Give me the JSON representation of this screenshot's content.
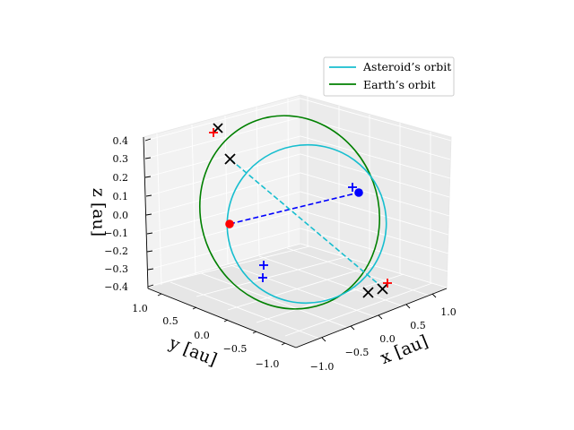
{
  "chart_data": {
    "type": "line",
    "projection": "3d",
    "axes": {
      "x": {
        "label": "x [au]",
        "ticks": [
          "−1.0",
          "−0.5",
          "0.0",
          "0.5",
          "1.0"
        ]
      },
      "y": {
        "label": "y [au]",
        "ticks": [
          "−1.0",
          "−0.5",
          "0.0",
          "0.5",
          "1.0"
        ]
      },
      "z": {
        "label": "z [au]",
        "ticks": [
          "−0.4",
          "−0.3",
          "−0.2",
          "−0.1",
          "0.0",
          "0.1",
          "0.2",
          "0.3",
          "0.4"
        ]
      }
    },
    "grid": true,
    "legend_position": "top-right",
    "series": [
      {
        "name": "Asteroid’s orbit",
        "color": "#17becf",
        "style": "solid"
      },
      {
        "name": "Earth’s orbit",
        "color": "#008000",
        "style": "solid"
      }
    ],
    "extra_lines": [
      {
        "color": "#0000ff",
        "style": "dashed"
      },
      {
        "color": "#17becf",
        "style": "dashed"
      }
    ],
    "points": [
      {
        "marker": "dot",
        "color": "#ff0000"
      },
      {
        "marker": "dot",
        "color": "#0000ff"
      },
      {
        "marker": "x",
        "color": "#000000"
      },
      {
        "marker": "x",
        "color": "#000000"
      },
      {
        "marker": "x",
        "color": "#000000"
      },
      {
        "marker": "x",
        "color": "#000000"
      },
      {
        "marker": "+",
        "color": "#ff0000"
      },
      {
        "marker": "+",
        "color": "#ff0000"
      },
      {
        "marker": "+",
        "color": "#0000ff"
      },
      {
        "marker": "+",
        "color": "#0000ff"
      },
      {
        "marker": "+",
        "color": "#0000ff"
      }
    ]
  }
}
